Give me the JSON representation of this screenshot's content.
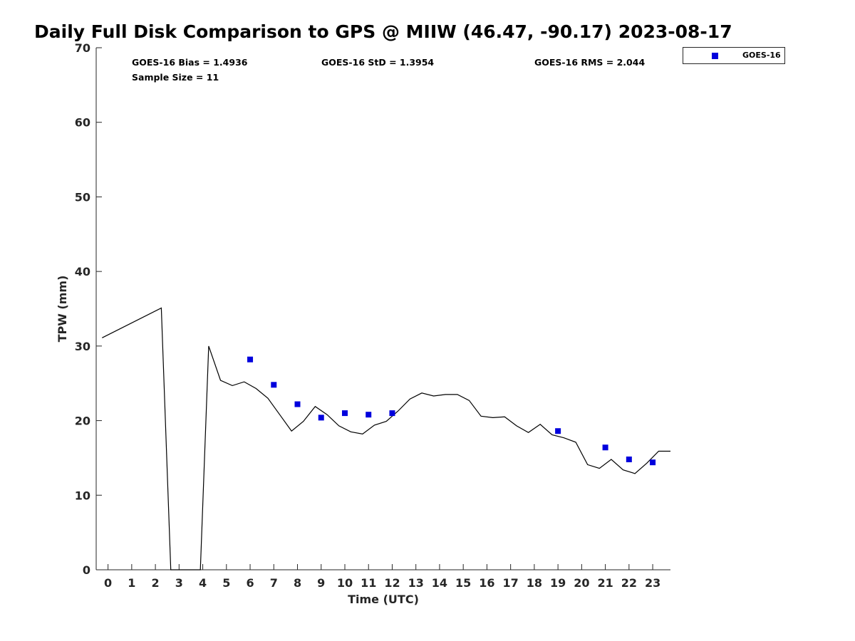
{
  "chart_data": {
    "type": "line",
    "title": "Daily Full Disk Comparison to GPS @ MIIW (46.47, -90.17) 2023-08-17",
    "xlabel": "Time (UTC)",
    "ylabel": "TPW (mm)",
    "xlim": [
      -0.5,
      23.75
    ],
    "ylim": [
      0,
      70
    ],
    "x_ticks": [
      0,
      1,
      2,
      3,
      4,
      5,
      6,
      7,
      8,
      9,
      10,
      11,
      12,
      13,
      14,
      15,
      16,
      17,
      18,
      19,
      20,
      21,
      22,
      23
    ],
    "y_ticks": [
      0,
      10,
      20,
      30,
      40,
      50,
      60,
      70
    ],
    "grid": false,
    "legend_position": "top-right, outside plot",
    "stats": {
      "bias": "GOES-16 Bias = 1.4936",
      "std": "GOES-16 StD = 1.3954",
      "rms": "GOES-16 RMS = 2.044",
      "sample_size": "Sample Size = 11"
    },
    "series": [
      {
        "kind": "line",
        "color": "#000000",
        "points": [
          [
            -0.25,
            31.1
          ],
          [
            2.25,
            35.1
          ],
          [
            2.65,
            0
          ],
          [
            3.9,
            0
          ],
          [
            4.25,
            30.0
          ],
          [
            4.75,
            25.4
          ],
          [
            5.25,
            24.7
          ],
          [
            5.75,
            25.2
          ],
          [
            6.25,
            24.3
          ],
          [
            6.75,
            23.0
          ],
          [
            7.25,
            20.8
          ],
          [
            7.75,
            18.6
          ],
          [
            8.25,
            19.9
          ],
          [
            8.75,
            21.9
          ],
          [
            9.25,
            20.8
          ],
          [
            9.75,
            19.3
          ],
          [
            10.25,
            18.5
          ],
          [
            10.75,
            18.2
          ],
          [
            11.25,
            19.4
          ],
          [
            11.75,
            19.9
          ],
          [
            12.25,
            21.3
          ],
          [
            12.75,
            22.9
          ],
          [
            13.25,
            23.7
          ],
          [
            13.75,
            23.3
          ],
          [
            14.25,
            23.5
          ],
          [
            14.75,
            23.5
          ],
          [
            15.25,
            22.7
          ],
          [
            15.75,
            20.6
          ],
          [
            16.25,
            20.4
          ],
          [
            16.75,
            20.5
          ],
          [
            17.25,
            19.3
          ],
          [
            17.75,
            18.4
          ],
          [
            18.25,
            19.5
          ],
          [
            18.75,
            18.1
          ],
          [
            19.25,
            17.7
          ],
          [
            19.75,
            17.1
          ],
          [
            20.25,
            14.1
          ],
          [
            20.75,
            13.6
          ],
          [
            21.25,
            14.8
          ],
          [
            21.75,
            13.4
          ],
          [
            22.25,
            12.9
          ],
          [
            22.75,
            14.3
          ],
          [
            23.25,
            15.9
          ],
          [
            23.75,
            15.9
          ]
        ]
      },
      {
        "name": "GOES-16",
        "kind": "scatter",
        "marker": "square",
        "color": "#0000dd",
        "points": [
          [
            6,
            28.2
          ],
          [
            7,
            24.8
          ],
          [
            8,
            22.2
          ],
          [
            9,
            20.4
          ],
          [
            10,
            21.0
          ],
          [
            11,
            20.8
          ],
          [
            12,
            21.0
          ],
          [
            19,
            18.6
          ],
          [
            21,
            16.4
          ],
          [
            22,
            14.8
          ],
          [
            23,
            14.4
          ]
        ]
      }
    ]
  }
}
